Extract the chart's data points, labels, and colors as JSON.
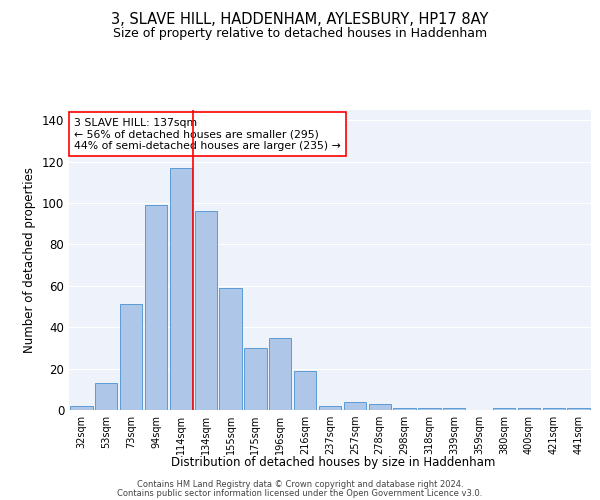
{
  "title1": "3, SLAVE HILL, HADDENHAM, AYLESBURY, HP17 8AY",
  "title2": "Size of property relative to detached houses in Haddenham",
  "xlabel": "Distribution of detached houses by size in Haddenham",
  "ylabel": "Number of detached properties",
  "categories": [
    "32sqm",
    "53sqm",
    "73sqm",
    "94sqm",
    "114sqm",
    "134sqm",
    "155sqm",
    "175sqm",
    "196sqm",
    "216sqm",
    "237sqm",
    "257sqm",
    "278sqm",
    "298sqm",
    "318sqm",
    "339sqm",
    "359sqm",
    "380sqm",
    "400sqm",
    "421sqm",
    "441sqm"
  ],
  "bar_heights": [
    2,
    13,
    51,
    99,
    117,
    96,
    59,
    30,
    35,
    19,
    2,
    4,
    3,
    1,
    1,
    1,
    0,
    1,
    1,
    1,
    1
  ],
  "bar_color": "#aec6e8",
  "bar_edge_color": "#5b9bd5",
  "vline_color": "red",
  "annotation_text": "3 SLAVE HILL: 137sqm\n← 56% of detached houses are smaller (295)\n44% of semi-detached houses are larger (235) →",
  "annotation_box_color": "white",
  "annotation_box_edge": "red",
  "ylim": [
    0,
    145
  ],
  "yticks": [
    0,
    20,
    40,
    60,
    80,
    100,
    120,
    140
  ],
  "background_color": "#eef2fa",
  "grid_color": "#d8dce8",
  "footer1": "Contains HM Land Registry data © Crown copyright and database right 2024.",
  "footer2": "Contains public sector information licensed under the Open Government Licence v3.0."
}
